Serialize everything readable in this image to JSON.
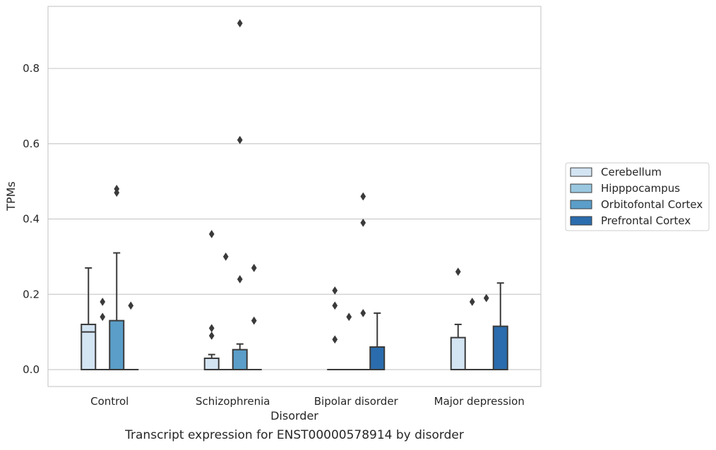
{
  "caption": "Transcript expression for ENST00000578914 by disorder",
  "chart_data": {
    "type": "box",
    "title": "",
    "xlabel": "Disorder",
    "ylabel": "TPMs",
    "categories": [
      "Control",
      "Schizophrenia",
      "Bipolar disorder",
      "Major depression"
    ],
    "ylim": [
      -0.045,
      0.965
    ],
    "yticks": [
      0.0,
      0.2,
      0.4,
      0.6,
      0.8
    ],
    "ytick_labels": [
      "0.0",
      "0.2",
      "0.4",
      "0.6",
      "0.8"
    ],
    "grid": true,
    "legend_position": "right",
    "colors": {
      "Cerebellum": "#d3e4f3",
      "Hipppocampus": "#9ac8e0",
      "Orbitofontal Cortex": "#5a9ec9",
      "Prefrontal Cortex": "#2a6cad",
      "edge": "#3a3a3a",
      "grid": "#cccccc",
      "frame": "#cccccc"
    },
    "series": [
      {
        "name": "Cerebellum",
        "boxes": [
          {
            "q1": 0.0,
            "median": 0.1,
            "q3": 0.12,
            "whisker_low": 0.0,
            "whisker_high": 0.27,
            "outliers": []
          },
          {
            "q1": 0.0,
            "median": 0.0,
            "q3": 0.03,
            "whisker_low": 0.0,
            "whisker_high": 0.04,
            "outliers": [
              0.09,
              0.11,
              0.36
            ]
          },
          {
            "q1": 0.0,
            "median": 0.0,
            "q3": 0.0,
            "whisker_low": 0.0,
            "whisker_high": 0.0,
            "outliers": [
              0.08,
              0.17,
              0.21
            ]
          },
          {
            "q1": 0.0,
            "median": 0.0,
            "q3": 0.085,
            "whisker_low": 0.0,
            "whisker_high": 0.12,
            "outliers": [
              0.26
            ]
          }
        ]
      },
      {
        "name": "Hipppocampus",
        "boxes": [
          {
            "q1": 0.0,
            "median": 0.0,
            "q3": 0.0,
            "whisker_low": 0.0,
            "whisker_high": 0.0,
            "outliers": [
              0.14,
              0.18
            ]
          },
          {
            "q1": 0.0,
            "median": 0.0,
            "q3": 0.0,
            "whisker_low": 0.0,
            "whisker_high": 0.0,
            "outliers": [
              0.3
            ]
          },
          {
            "q1": 0.0,
            "median": 0.0,
            "q3": 0.0,
            "whisker_low": 0.0,
            "whisker_high": 0.0,
            "outliers": [
              0.14
            ]
          },
          {
            "q1": 0.0,
            "median": 0.0,
            "q3": 0.0,
            "whisker_low": 0.0,
            "whisker_high": 0.0,
            "outliers": [
              0.18
            ]
          }
        ]
      },
      {
        "name": "Orbitofontal Cortex",
        "boxes": [
          {
            "q1": 0.0,
            "median": 0.0,
            "q3": 0.13,
            "whisker_low": 0.0,
            "whisker_high": 0.31,
            "outliers": [
              0.47,
              0.48
            ]
          },
          {
            "q1": 0.0,
            "median": 0.0,
            "q3": 0.053,
            "whisker_low": 0.0,
            "whisker_high": 0.068,
            "outliers": [
              0.24,
              0.61,
              0.92
            ]
          },
          {
            "q1": 0.0,
            "median": 0.0,
            "q3": 0.0,
            "whisker_low": 0.0,
            "whisker_high": 0.0,
            "outliers": [
              0.15,
              0.39,
              0.46
            ]
          },
          {
            "q1": 0.0,
            "median": 0.0,
            "q3": 0.0,
            "whisker_low": 0.0,
            "whisker_high": 0.0,
            "outliers": [
              0.19
            ]
          }
        ]
      },
      {
        "name": "Prefrontal Cortex",
        "boxes": [
          {
            "q1": 0.0,
            "median": 0.0,
            "q3": 0.0,
            "whisker_low": 0.0,
            "whisker_high": 0.0,
            "outliers": [
              0.17
            ]
          },
          {
            "q1": 0.0,
            "median": 0.0,
            "q3": 0.0,
            "whisker_low": 0.0,
            "whisker_high": 0.0,
            "outliers": [
              0.13,
              0.27
            ]
          },
          {
            "q1": 0.0,
            "median": 0.0,
            "q3": 0.06,
            "whisker_low": 0.0,
            "whisker_high": 0.15,
            "outliers": []
          },
          {
            "q1": 0.0,
            "median": 0.0,
            "q3": 0.115,
            "whisker_low": 0.0,
            "whisker_high": 0.23,
            "outliers": []
          }
        ]
      }
    ]
  }
}
